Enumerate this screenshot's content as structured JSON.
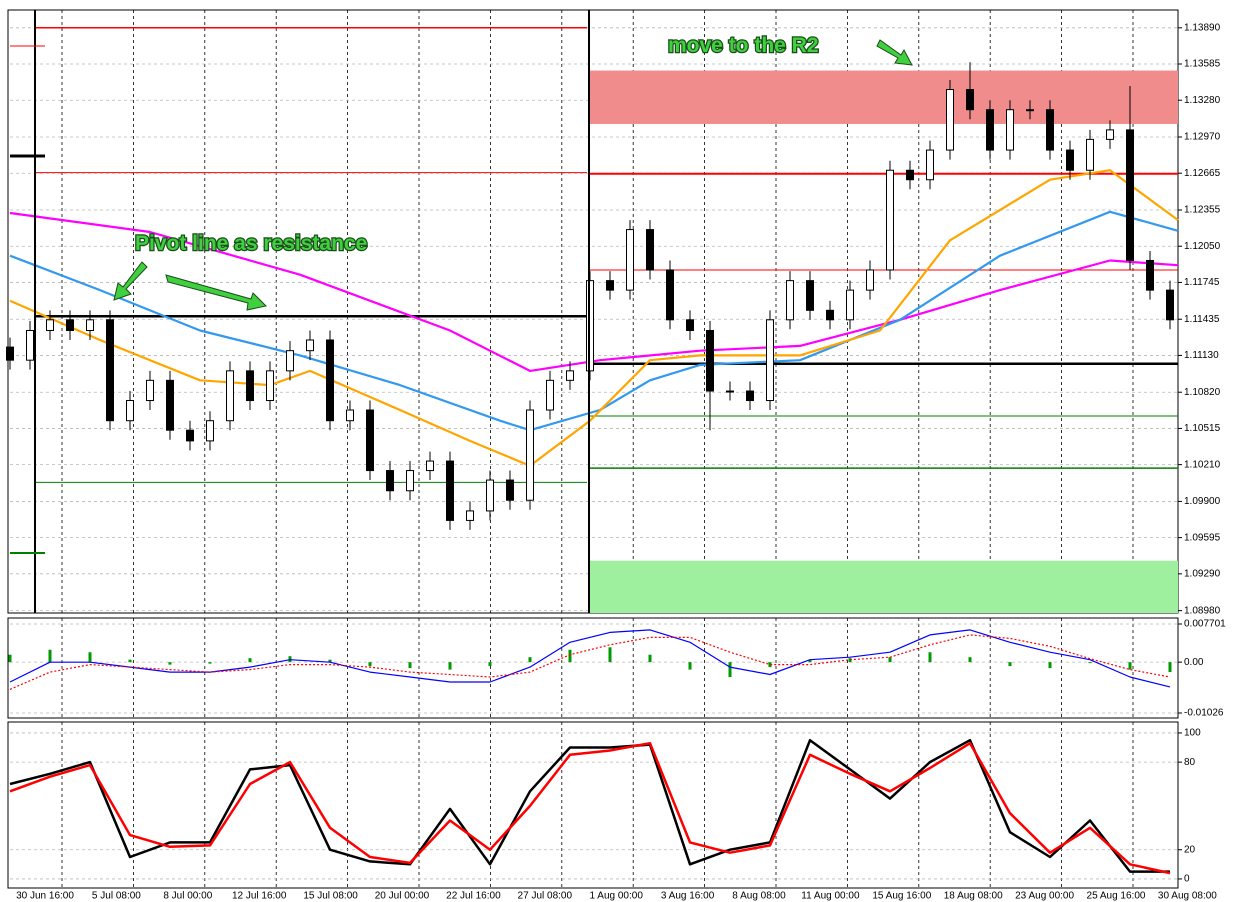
{
  "chart_data": [
    {
      "type": "candlestick",
      "open": [
        1.112,
        1.1109,
        1.1134,
        1.1143,
        1.1134,
        1.1143,
        1.1058,
        1.1075,
        1.1092,
        1.105,
        1.1041,
        1.1058,
        1.11,
        1.1075,
        1.11,
        1.1117,
        1.1126,
        1.1058,
        1.1067,
        1.1016,
        1.0999,
        1.1016,
        1.1024,
        1.0974,
        1.0982,
        1.1008,
        1.0991,
        1.1067,
        1.1092,
        1.11,
        1.1176,
        1.1168,
        1.1219,
        1.1185,
        1.1143,
        1.1134,
        1.1083,
        1.1083,
        1.1075,
        1.1143,
        1.1176,
        1.1151,
        1.1143,
        1.1168,
        1.1185,
        1.1269,
        1.1261,
        1.1286,
        1.1337,
        1.132,
        1.1286,
        1.132,
        1.132,
        1.1286,
        1.1269,
        1.1295,
        1.1303,
        1.1193,
        1.1168
      ],
      "high": [
        1.1128,
        1.1142,
        1.1151,
        1.1151,
        1.1151,
        1.1151,
        1.1083,
        1.11,
        1.11,
        1.1058,
        1.1066,
        1.1108,
        1.1108,
        1.1108,
        1.1125,
        1.1134,
        1.1134,
        1.1075,
        1.1075,
        1.1024,
        1.1024,
        1.1032,
        1.1032,
        1.099,
        1.1016,
        1.1016,
        1.1075,
        1.11,
        1.1108,
        1.1184,
        1.1184,
        1.1227,
        1.1227,
        1.1193,
        1.1151,
        1.1142,
        1.1091,
        1.1091,
        1.1151,
        1.1184,
        1.1184,
        1.1159,
        1.1176,
        1.1193,
        1.1277,
        1.1277,
        1.1294,
        1.1345,
        1.136,
        1.1328,
        1.1328,
        1.1328,
        1.1328,
        1.1294,
        1.1303,
        1.1311,
        1.134,
        1.1201,
        1.1176
      ],
      "low": [
        1.1101,
        1.1101,
        1.1126,
        1.1126,
        1.1126,
        1.105,
        1.105,
        1.1067,
        1.1042,
        1.1033,
        1.1033,
        1.105,
        1.1067,
        1.1067,
        1.1092,
        1.1109,
        1.105,
        1.105,
        1.1008,
        1.0991,
        1.0991,
        1.1008,
        1.0966,
        1.0966,
        1.0974,
        1.0983,
        1.0983,
        1.1059,
        1.1084,
        1.1092,
        1.116,
        1.116,
        1.1177,
        1.1135,
        1.1126,
        1.105,
        1.1075,
        1.1067,
        1.1067,
        1.1135,
        1.1143,
        1.1135,
        1.1135,
        1.116,
        1.1177,
        1.1253,
        1.1253,
        1.1278,
        1.1312,
        1.1278,
        1.1278,
        1.1312,
        1.1278,
        1.1261,
        1.1261,
        1.1287,
        1.1185,
        1.116,
        1.1135
      ],
      "close": [
        1.1109,
        1.1134,
        1.1143,
        1.1134,
        1.1143,
        1.1058,
        1.1075,
        1.1092,
        1.105,
        1.1041,
        1.1058,
        1.11,
        1.1075,
        1.11,
        1.1117,
        1.1126,
        1.1058,
        1.1067,
        1.1016,
        1.0999,
        1.1016,
        1.1024,
        1.0974,
        1.0982,
        1.1008,
        1.0991,
        1.1067,
        1.1092,
        1.11,
        1.1176,
        1.1168,
        1.1219,
        1.1185,
        1.1143,
        1.1134,
        1.1083,
        1.1083,
        1.1075,
        1.1143,
        1.1176,
        1.1151,
        1.1143,
        1.1168,
        1.1185,
        1.1269,
        1.1261,
        1.1286,
        1.1337,
        1.132,
        1.1286,
        1.132,
        1.132,
        1.1286,
        1.1269,
        1.1295,
        1.1303,
        1.1193,
        1.1168,
        1.1143
      ],
      "candle_color": "#000000",
      "xlim": [
        0,
        58.4
      ],
      "ylim": [
        1.0896,
        1.1404
      ],
      "xticks": [
        {
          "value": 2.6,
          "label": "30 Jun 16:00"
        },
        {
          "value": 6.17,
          "label": "5 Jul 08:00"
        },
        {
          "value": 9.74,
          "label": "8 Jul 00:00"
        },
        {
          "value": 13.31,
          "label": "12 Jul 16:00"
        },
        {
          "value": 16.88,
          "label": "15 Jul 08:00"
        },
        {
          "value": 20.45,
          "label": "20 Jul 00:00"
        },
        {
          "value": 24.02,
          "label": "22 Jul 16:00"
        },
        {
          "value": 27.59,
          "label": "27 Jul 08:00"
        },
        {
          "value": 31.16,
          "label": "1 Aug 00:00"
        },
        {
          "value": 34.73,
          "label": "3 Aug 16:00"
        },
        {
          "value": 38.3,
          "label": "8 Aug 08:00"
        },
        {
          "value": 41.87,
          "label": "11 Aug 00:00"
        },
        {
          "value": 45.44,
          "label": "15 Aug 16:00"
        },
        {
          "value": 49.01,
          "label": "18 Aug 08:00"
        },
        {
          "value": 52.58,
          "label": "23 Aug 00:00"
        },
        {
          "value": 56.15,
          "label": "25 Aug 16:00"
        },
        {
          "value": 59.72,
          "label": "30 Aug 08:00"
        }
      ],
      "yticks": [
        {
          "value": 1.1389,
          "label": "1.13890"
        },
        1.13585,
        {
          "value": 1.1328,
          "label": "1.13280"
        },
        {
          "value": 1.1297,
          "label": "1.12970"
        },
        1.12665,
        1.12355,
        {
          "value": 1.1205,
          "label": "1.12050"
        },
        1.11745,
        1.11435,
        {
          "value": 1.1113,
          "label": "1.11130"
        },
        {
          "value": 1.1082,
          "label": "1.10820"
        },
        1.10515,
        {
          "value": 1.1021,
          "label": "1.10210"
        },
        {
          "value": 1.099,
          "label": "1.09900"
        },
        1.09595,
        {
          "value": 1.0929,
          "label": "1.09290"
        },
        {
          "value": 1.0898,
          "label": "1.08980"
        }
      ],
      "grid": true,
      "lines": [
        {
          "color": "#ff00ff",
          "x": [
            0,
            7,
            14.5,
            22,
            26,
            29.5,
            34.5,
            39.5,
            44.5,
            49.5,
            55,
            58.4
          ],
          "values": [
            1.1233,
            1.1217,
            1.1181,
            1.1134,
            1.11,
            1.1109,
            1.1117,
            1.1121,
            1.1143,
            1.1168,
            1.1193,
            1.1189
          ]
        },
        {
          "color": "#3399ee",
          "x": [
            0,
            4.5,
            9.5,
            14.5,
            19.5,
            24.5,
            26,
            29.5,
            32,
            34.5,
            39.5,
            44.5,
            49.5,
            55,
            58.4
          ],
          "values": [
            1.1197,
            1.1168,
            1.1134,
            1.1113,
            1.1088,
            1.1058,
            1.105,
            1.1067,
            1.1092,
            1.1105,
            1.1109,
            1.1143,
            1.1197,
            1.1234,
            1.1218
          ]
        },
        {
          "color": "#ffa500",
          "x": [
            0,
            4.5,
            9.5,
            13,
            15,
            19.5,
            23,
            26,
            29,
            32,
            34.5,
            39.5,
            43.5,
            47,
            52,
            55,
            58.4
          ],
          "values": [
            1.1159,
            1.1126,
            1.1092,
            1.1088,
            1.11,
            1.1067,
            1.1041,
            1.102,
            1.1058,
            1.1109,
            1.1113,
            1.1113,
            1.1134,
            1.121,
            1.1261,
            1.1269,
            1.1227
          ]
        }
      ],
      "levels": [
        {
          "value": 1.1389,
          "color": "#ff0000",
          "width": 1.5,
          "x": [
            1.25,
            28.85
          ]
        },
        {
          "value": 1.1267,
          "color": "#ff0000",
          "width": 1,
          "x": [
            1.25,
            28.85
          ]
        },
        {
          "value": 1.1146,
          "color": "#000000",
          "width": 2.5,
          "x": [
            1.25,
            28.85
          ]
        },
        {
          "value": 1.1006,
          "color": "#008000",
          "width": 1,
          "x": [
            1.25,
            28.85
          ]
        },
        {
          "value": 1.1266,
          "color": "#ff0000",
          "width": 2,
          "x": [
            28.95,
            58.4
          ]
        },
        {
          "value": 1.1185,
          "color": "#ff0000",
          "width": 1,
          "x": [
            28.95,
            58.4
          ]
        },
        {
          "value": 1.1106,
          "color": "#000000",
          "width": 2.5,
          "x": [
            28.95,
            58.4
          ]
        },
        {
          "value": 1.1062,
          "color": "#008000",
          "width": 1,
          "x": [
            28.95,
            58.4
          ]
        },
        {
          "value": 1.1018,
          "color": "#008000",
          "width": 1.5,
          "x": [
            28.95,
            58.4
          ]
        }
      ],
      "zones": [
        {
          "y": [
            1.1308,
            1.1353
          ],
          "x": [
            28.95,
            58.4
          ],
          "color": "#f08c8c"
        },
        {
          "y": [
            1.0896,
            1.094
          ],
          "x": [
            28.95,
            58.4
          ],
          "color": "#9ef09e"
        }
      ],
      "annotations": [
        "move to the R2",
        "Pivot line as resistance"
      ]
    },
    {
      "type": "macd",
      "x": [
        0,
        2,
        4,
        6,
        8,
        10,
        12,
        14,
        16,
        18,
        20,
        22,
        24,
        26,
        28,
        30,
        32,
        34,
        36,
        38,
        40,
        42,
        44,
        46,
        48,
        50,
        52,
        54,
        56,
        58
      ],
      "xlim": [
        0,
        58.4
      ],
      "ylim": [
        -0.01127,
        0.00891
      ],
      "yticks": [
        0.007701,
        {
          "value": 0,
          "label": "0.00"
        },
        -0.01026
      ],
      "histogram": {
        "color": "#009900",
        "values": [
          0.0015,
          0.0025,
          0.002,
          0.0005,
          -0.0005,
          -0.0003,
          0.0008,
          0.0012,
          0.0005,
          -0.0008,
          -0.0012,
          -0.0015,
          -0.0008,
          0.001,
          0.0025,
          0.003,
          0.0015,
          -0.0015,
          -0.003,
          -0.001,
          0.0005,
          0.0008,
          0.001,
          0.002,
          0.001,
          -0.0008,
          -0.0012,
          -0.0002,
          -0.0015,
          -0.002
        ]
      },
      "series": [
        {
          "color": "#0000ff",
          "style": "solid",
          "values": [
            -0.004,
            0,
            0,
            -0.001,
            -0.002,
            -0.002,
            -0.001,
            0.0005,
            0,
            -0.002,
            -0.003,
            -0.004,
            -0.004,
            -0.001,
            0.004,
            0.006,
            0.0065,
            0.004,
            -0.001,
            -0.0025,
            0.0005,
            0.001,
            0.002,
            0.0055,
            0.0065,
            0.004,
            0.002,
            0.0005,
            -0.003,
            -0.005
          ]
        },
        {
          "color": "#ff0000",
          "style": "dotted",
          "values": [
            -0.0055,
            -0.002,
            -0.0005,
            -0.001,
            -0.0015,
            -0.002,
            -0.0015,
            -0.0005,
            -0.0005,
            -0.001,
            -0.002,
            -0.0025,
            -0.003,
            -0.002,
            0.0015,
            0.0035,
            0.005,
            0.005,
            0.002,
            -0.0005,
            -0.0005,
            0.0005,
            0.001,
            0.0035,
            0.0055,
            0.0048,
            0.0032,
            0.0007,
            -0.0015,
            -0.003
          ]
        }
      ]
    },
    {
      "type": "line",
      "x": [
        0,
        2,
        4,
        6,
        8,
        10,
        12,
        14,
        16,
        18,
        20,
        22,
        24,
        26,
        28,
        30,
        32,
        34,
        36,
        38,
        40,
        42,
        44,
        46,
        48,
        50,
        52,
        54,
        56,
        58
      ],
      "xlim": [
        0,
        58.4
      ],
      "ylim": [
        -6.2,
        107.5
      ],
      "yticks": [
        100,
        80,
        20,
        0
      ],
      "series": [
        {
          "color": "#000000",
          "style": "solid",
          "values": [
            65,
            72,
            80,
            15,
            25,
            25,
            75,
            78,
            20,
            12,
            10,
            48,
            10,
            60,
            90,
            90,
            92,
            10,
            20,
            25,
            95,
            75,
            55,
            80,
            95,
            32,
            15,
            40,
            5,
            5
          ]
        },
        {
          "color": "#ff0000",
          "style": "solid",
          "values": [
            60,
            70,
            78,
            30,
            22,
            23,
            65,
            80,
            35,
            15,
            11,
            40,
            20,
            50,
            85,
            88,
            93,
            25,
            18,
            23,
            85,
            72,
            60,
            76,
            93,
            45,
            18,
            35,
            10,
            4
          ]
        }
      ]
    }
  ]
}
